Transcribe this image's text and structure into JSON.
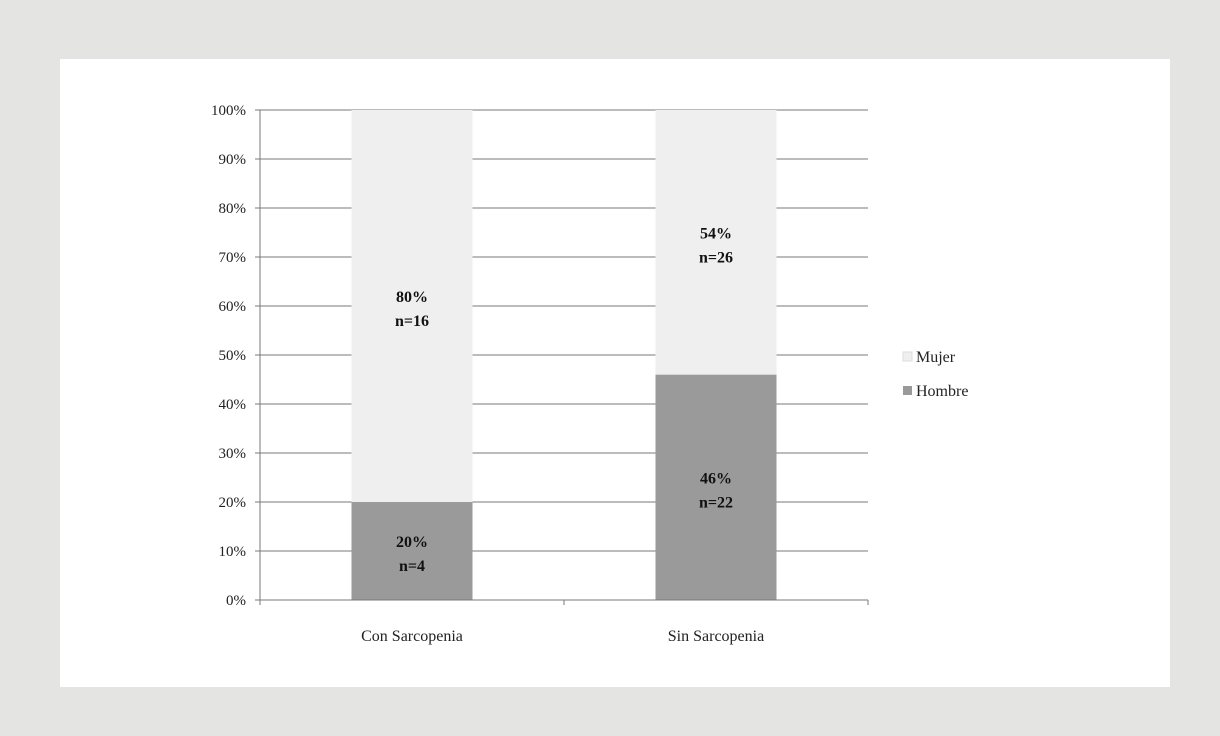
{
  "chart_data": {
    "type": "bar",
    "stacked": true,
    "categories": [
      "Con Sarcopenia",
      "Sin Sarcopenia"
    ],
    "series": [
      {
        "name": "Hombre",
        "values": [
          20,
          46
        ],
        "labels": [
          "20%",
          "46%"
        ],
        "counts": [
          "n=4",
          "n=22"
        ],
        "color": "#9a9a9a"
      },
      {
        "name": "Mujer",
        "values": [
          80,
          54
        ],
        "labels": [
          "80%",
          "54%"
        ],
        "counts": [
          "n=16",
          "n=26"
        ],
        "color": "#efefef"
      }
    ],
    "yticks": [
      "0%",
      "10%",
      "20%",
      "30%",
      "40%",
      "50%",
      "60%",
      "70%",
      "80%",
      "90%",
      "100%"
    ],
    "ylim": [
      0,
      100
    ],
    "grid": true,
    "legend": {
      "position": "right",
      "order": [
        "Mujer",
        "Hombre"
      ]
    },
    "title": "",
    "xlabel": "",
    "ylabel": ""
  },
  "colors": {
    "page_background": "#e4e4e2",
    "plot_background": "#ffffff",
    "gridline": "#7a7a7a"
  }
}
